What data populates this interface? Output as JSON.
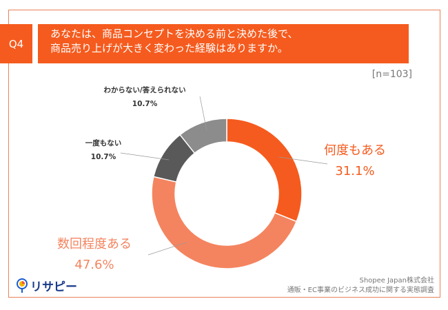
{
  "question_label": "Q4",
  "title_lines": [
    "あなたは、商品コンセプトを決める前と決めた後で、",
    "商品売り上げが大きく変わった経験はありますか。"
  ],
  "sample": "[n=103]",
  "chart_data": {
    "type": "pie",
    "donut": true,
    "categories": [
      "何度もある",
      "数回程度ある",
      "一度もない",
      "わからない/答えられない"
    ],
    "values": [
      31.1,
      47.6,
      10.7,
      10.7
    ],
    "value_labels": [
      "31.1%",
      "47.6%",
      "10.7%",
      "10.7%"
    ],
    "colors": [
      "#F55B1E",
      "#F4845F",
      "#595959",
      "#8C8C8C"
    ]
  },
  "source": {
    "line1": "Shopee Japan株式会社",
    "line2": "通販・EC事業のビジネス成功に関する実態調査"
  },
  "logo": {
    "text": "リサピー"
  }
}
